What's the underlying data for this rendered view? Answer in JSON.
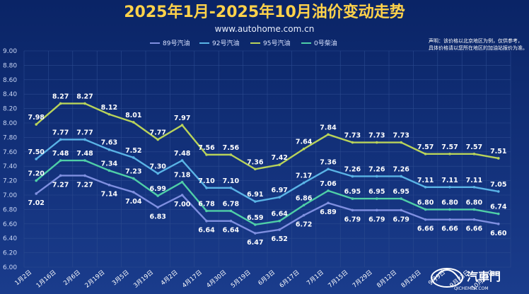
{
  "chart_data": {
    "type": "line",
    "title": "2025年1月-2025年10月油价变动走势",
    "subtitle": "www.autohome.com.cn",
    "note_lines": [
      "声明：该价格以北京地区为例，仅供参考，",
      "具体价格请以您所在地区的加油站报价为准。"
    ],
    "categories": [
      "1月2日",
      "1月16日",
      "2月6日",
      "2月19日",
      "3月5日",
      "3月19日",
      "4月2日",
      "4月17日",
      "4月30日",
      "5月19日",
      "6月3日",
      "6月17日",
      "7月1日",
      "7月15日",
      "7月29日",
      "8月12日",
      "8月26日",
      "9月9日",
      "9月23日",
      "10月13日"
    ],
    "ylim": [
      6.0,
      9.0
    ],
    "yticks": [
      "6.00",
      "6.20",
      "6.40",
      "6.60",
      "6.80",
      "7.00",
      "7.20",
      "7.40",
      "7.60",
      "7.80",
      "8.00",
      "8.20",
      "8.40",
      "8.60",
      "8.80",
      "9.00"
    ],
    "legend_position": "top",
    "grid": true,
    "series": [
      {
        "name": "89号汽油",
        "color": "#7f8fe0",
        "values": [
          7.02,
          7.27,
          7.27,
          7.14,
          7.04,
          6.83,
          7.0,
          6.64,
          6.64,
          6.47,
          6.52,
          6.72,
          6.89,
          6.79,
          6.79,
          6.79,
          6.66,
          6.66,
          6.66,
          6.6
        ],
        "labels": [
          "7.02",
          "7.27",
          "7.27",
          "7.14",
          "7.04",
          "6.83",
          "7.00",
          "6.64",
          "6.64",
          "6.47",
          "6.52",
          "6.72",
          "6.89",
          "6.79",
          "6.79",
          "6.79",
          "6.66",
          "6.66",
          "6.66",
          "6.60"
        ]
      },
      {
        "name": "92号汽油",
        "color": "#5ab4e6",
        "values": [
          7.5,
          7.77,
          7.77,
          7.63,
          7.52,
          7.3,
          7.48,
          7.1,
          7.1,
          6.91,
          6.97,
          7.17,
          7.36,
          7.26,
          7.26,
          7.26,
          7.11,
          7.11,
          7.11,
          7.05
        ],
        "labels": [
          "7.50",
          "7.77",
          "7.77",
          "7.63",
          "7.52",
          "7.30",
          "7.48",
          "7.10",
          "7.10",
          "6.91",
          "6.97",
          "7.17",
          "7.36",
          "7.26",
          "7.26",
          "7.26",
          "7.11",
          "7.11",
          "7.11",
          "7.05"
        ]
      },
      {
        "name": "95号汽油",
        "color": "#b9d35a",
        "values": [
          7.98,
          8.27,
          8.27,
          8.12,
          8.01,
          7.77,
          7.97,
          7.56,
          7.56,
          7.36,
          7.42,
          7.64,
          7.84,
          7.73,
          7.73,
          7.73,
          7.57,
          7.57,
          7.57,
          7.51
        ],
        "labels": [
          "7.98",
          "8.27",
          "8.27",
          "8.12",
          "8.01",
          "7.77",
          "7.97",
          "7.56",
          "7.56",
          "7.36",
          "7.42",
          "7.64",
          "7.84",
          "7.73",
          "7.73",
          "7.73",
          "7.57",
          "7.57",
          "7.57",
          "7.51"
        ]
      },
      {
        "name": "0号柴油",
        "color": "#4fcfa7",
        "values": [
          7.2,
          7.48,
          7.48,
          7.34,
          7.23,
          6.99,
          7.18,
          6.78,
          6.78,
          6.59,
          6.64,
          6.86,
          7.06,
          6.95,
          6.95,
          6.95,
          6.8,
          6.8,
          6.8,
          6.74
        ],
        "labels": [
          "7.20",
          "7.48",
          "7.48",
          "7.34",
          "7.23",
          "6.99",
          "7.18",
          "6.78",
          "6.78",
          "6.59",
          "6.64",
          "6.86",
          "7.06",
          "6.95",
          "6.95",
          "6.95",
          "6.80",
          "6.80",
          "6.80",
          "6.74"
        ]
      }
    ]
  },
  "brand": {
    "name": "汽車門",
    "sub": "QICHEMEN.COM"
  }
}
